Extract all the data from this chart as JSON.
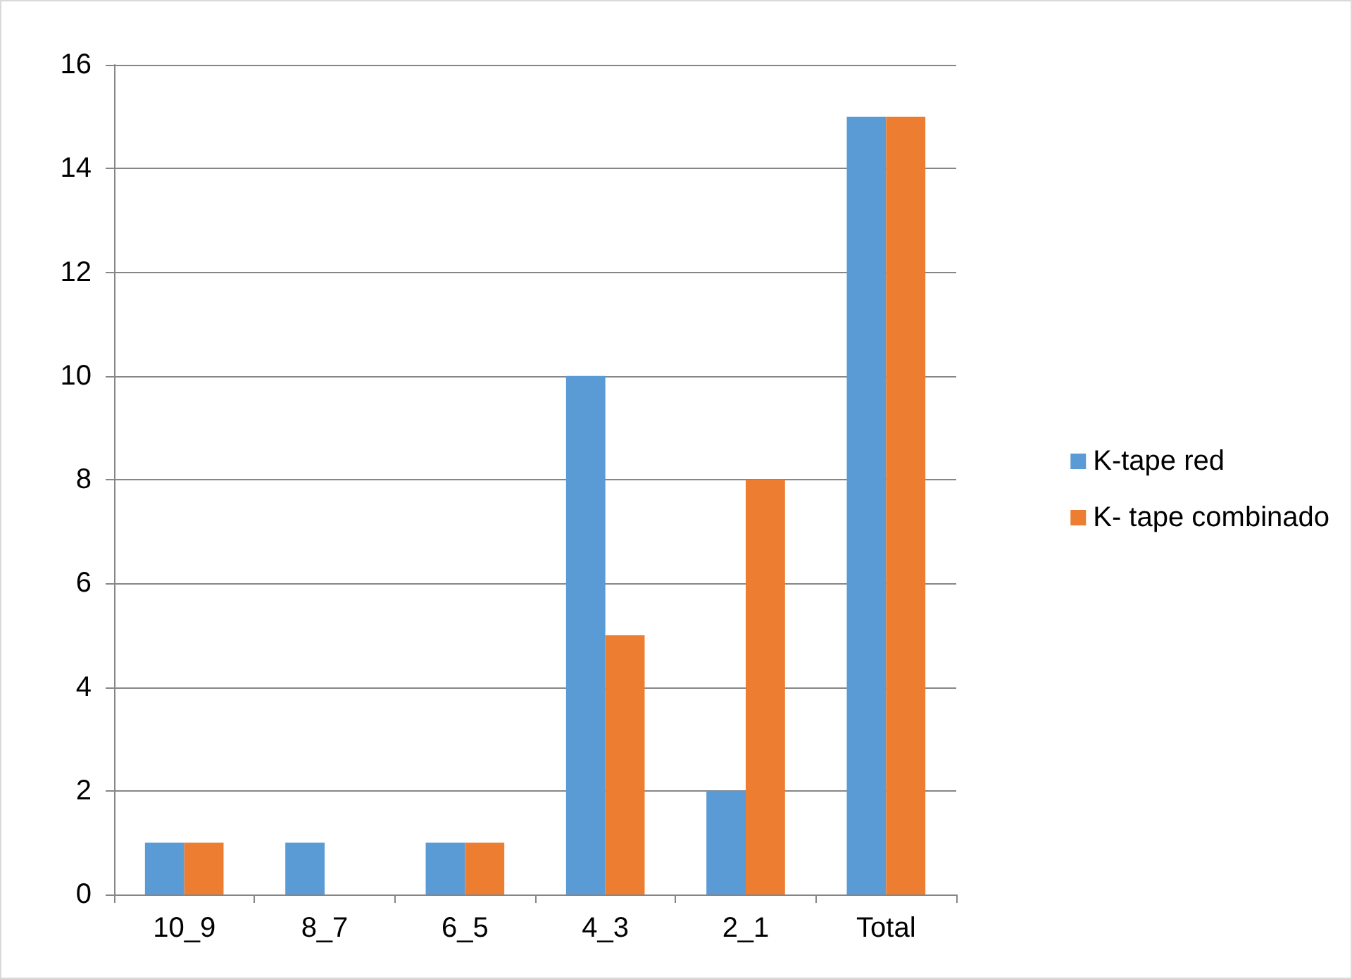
{
  "chart_data": {
    "type": "bar",
    "categories": [
      "10_9",
      "8_7",
      "6_5",
      "4_3",
      "2_1",
      "Total"
    ],
    "series": [
      {
        "name": "K-tape red",
        "color": "#5b9bd5",
        "values": [
          1,
          1,
          1,
          10,
          2,
          15
        ]
      },
      {
        "name": "K- tape combinado",
        "color": "#ed7d31",
        "values": [
          1,
          0,
          1,
          5,
          8,
          15
        ]
      }
    ],
    "ylim": [
      0,
      16
    ],
    "yticks": [
      0,
      2,
      4,
      6,
      8,
      10,
      12,
      14,
      16
    ],
    "grid": "y",
    "legend": "right"
  }
}
